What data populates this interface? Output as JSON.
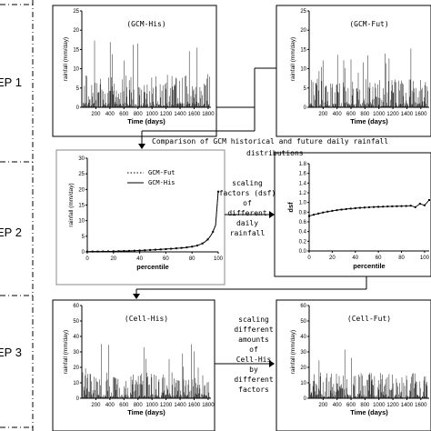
{
  "steps": [
    {
      "id": "step1",
      "label": "EP 1"
    },
    {
      "id": "step2",
      "label": "EP 2"
    },
    {
      "id": "step3",
      "label": "EP 3"
    }
  ],
  "panels": {
    "gcm_his": {
      "title": "(GCM-His)",
      "ylabel": "rainfall (mm/day)",
      "xlabel": "Time (days)",
      "yticks": [
        "0",
        "5",
        "10",
        "15",
        "20",
        "25"
      ],
      "xticks": [
        "200",
        "400",
        "600",
        "800",
        "1000",
        "1200",
        "1400",
        "1600",
        "1800"
      ]
    },
    "gcm_fut": {
      "title": "(GCM-Fut)",
      "ylabel": "rainfall (mm/day)",
      "xlabel": "Time (days)",
      "yticks": [
        "0",
        "5",
        "10",
        "15",
        "20",
        "25"
      ],
      "xticks": [
        "200",
        "400",
        "600",
        "800",
        "1000",
        "1200",
        "1400",
        "1600"
      ]
    },
    "cdf": {
      "ylabel": "rainfall (mm/day)",
      "xlabel": "percentile",
      "yticks": [
        "0",
        "5",
        "10",
        "15",
        "20",
        "25",
        "30"
      ],
      "xticks": [
        "0",
        "20",
        "40",
        "60",
        "80",
        "100"
      ],
      "legend": [
        "GCM-Fut",
        "GCM-His"
      ]
    },
    "dsf": {
      "ylabel": "dsf",
      "xlabel": "percentile",
      "yticks": [
        "0.0",
        "0.2",
        "0.4",
        "0.6",
        "0.8",
        "1.0",
        "1.2",
        "1.4",
        "1.6",
        "1.8"
      ],
      "xticks": [
        "0",
        "20",
        "40",
        "60",
        "80",
        "100"
      ]
    },
    "cell_his": {
      "title": "(Cell-His)",
      "ylabel": "rainfall (mm/day)",
      "xlabel": "Time (days)",
      "yticks": [
        "0",
        "10",
        "20",
        "30",
        "40",
        "50",
        "60"
      ],
      "xticks": [
        "200",
        "400",
        "600",
        "800",
        "1000",
        "1200",
        "1400",
        "1600",
        "1800"
      ]
    },
    "cell_fut": {
      "title": "(Cell-Fut)",
      "ylabel": "rainfall (mm/day)",
      "xlabel": "Time (days)",
      "yticks": [
        "0",
        "10",
        "20",
        "30",
        "40",
        "50",
        "60"
      ],
      "xticks": [
        "200",
        "400",
        "600",
        "800",
        "1000",
        "1200",
        "1400",
        "1600"
      ]
    }
  },
  "annotations": {
    "comparison_line1": "Comparison of GCM historical and future daily rainfall",
    "comparison_line2": "distributions",
    "scaling_factors": [
      "scaling",
      "factors (dsf)",
      "of",
      "different",
      "daily",
      "rainfall"
    ],
    "scaling_amounts": [
      "scaling",
      "different",
      "amounts",
      "of",
      "Cell-His",
      "by",
      "different",
      "factors"
    ]
  }
}
